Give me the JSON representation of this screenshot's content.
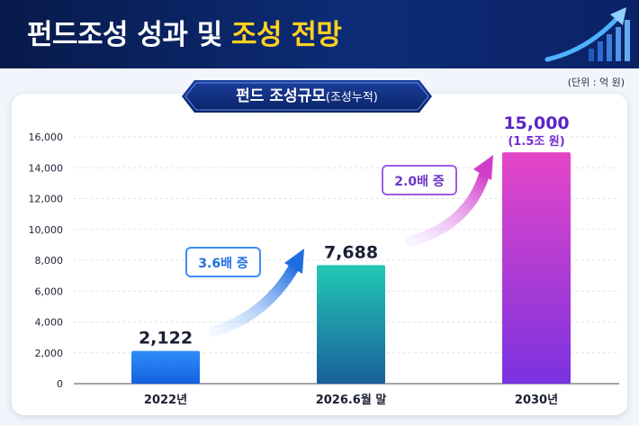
{
  "header": {
    "title_main": "펀드조성 성과 및 ",
    "title_highlight": "조성 전망"
  },
  "banner": {
    "title": "펀드 조성규모",
    "subtitle": "(조성누적)"
  },
  "unit_note": "(단위 : 억 원)",
  "callouts": {
    "first": "3.6배 증",
    "second": "2.0배 증"
  },
  "colors": {
    "header_bg": "#0d2c78",
    "highlight": "#ffd21f",
    "bar_2022": "#1f7af0",
    "bar_2026": "#1fb5a8",
    "bar_2030": "#b03be6"
  },
  "chart_data": {
    "type": "bar",
    "categories": [
      "2022년",
      "2026.6월 말",
      "2030년"
    ],
    "values": [
      2122,
      7688,
      15000
    ],
    "value_labels": [
      "2,122",
      "7,688",
      "15,000"
    ],
    "value_sublabels": [
      "",
      "",
      "(1.5조 원)"
    ],
    "ylim": [
      0,
      16000
    ],
    "yticks": [
      0,
      2000,
      4000,
      6000,
      8000,
      10000,
      12000,
      14000,
      16000
    ],
    "ytick_labels": [
      "0",
      "2,000",
      "4,000",
      "6,000",
      "8,000",
      "10,000",
      "12,000",
      "14,000",
      "16,000"
    ],
    "grid": true,
    "xlabel": "",
    "ylabel": ""
  }
}
